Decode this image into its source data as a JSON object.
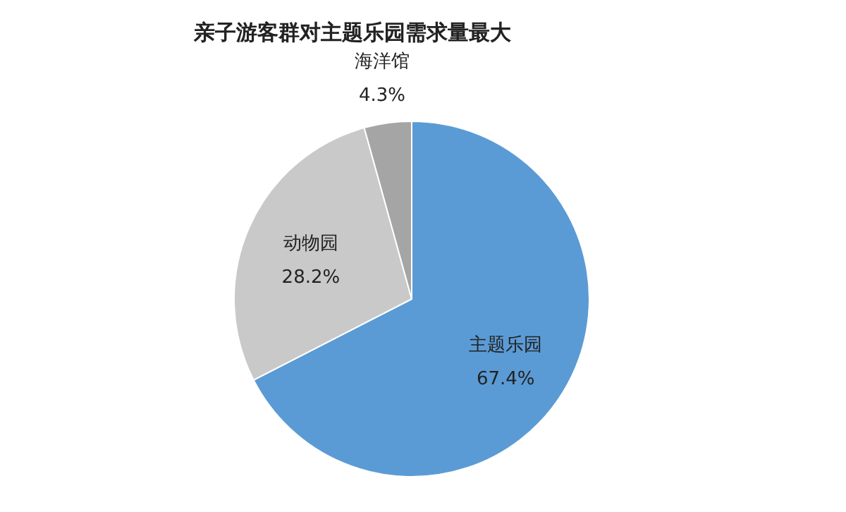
{
  "chart_data": {
    "type": "pie",
    "title": "亲子游客群对主题乐园需求量最大",
    "categories": [
      "主题乐园",
      "动物园",
      "海洋馆"
    ],
    "values": [
      67.4,
      28.2,
      4.3
    ],
    "value_labels": [
      "67.4%",
      "28.2%",
      "4.3%"
    ],
    "colors": [
      "#5b9bd5",
      "#c9c9c9",
      "#a5a5a5"
    ],
    "legend": false
  }
}
